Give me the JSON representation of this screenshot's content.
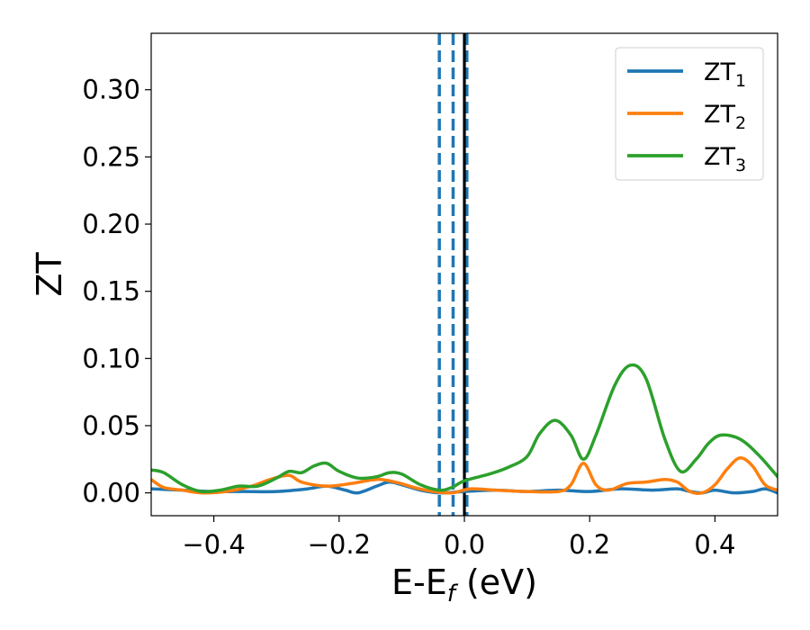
{
  "chart_data": {
    "type": "line",
    "xlabel": {
      "main": "E-E",
      "sub": "f",
      "suffix": " (eV)"
    },
    "ylabel": "ZT",
    "xlim": [
      -0.5,
      0.5
    ],
    "ylim": [
      -0.017,
      0.342
    ],
    "xticks": [
      {
        "value": -0.4,
        "label": "−0.4"
      },
      {
        "value": -0.2,
        "label": "−0.2"
      },
      {
        "value": 0.0,
        "label": "0.0"
      },
      {
        "value": 0.2,
        "label": "0.2"
      },
      {
        "value": 0.4,
        "label": "0.4"
      }
    ],
    "yticks": [
      {
        "value": 0.0,
        "label": "0.00"
      },
      {
        "value": 0.05,
        "label": "0.05"
      },
      {
        "value": 0.1,
        "label": "0.10"
      },
      {
        "value": 0.15,
        "label": "0.15"
      },
      {
        "value": 0.2,
        "label": "0.20"
      },
      {
        "value": 0.25,
        "label": "0.25"
      },
      {
        "value": 0.3,
        "label": "0.30"
      }
    ],
    "grid": false,
    "legend_position": "top-right",
    "series": [
      {
        "name": "ZT",
        "sub": "1",
        "color": "#1f77b4",
        "points": [
          [
            -0.5,
            0.003
          ],
          [
            -0.45,
            0.002
          ],
          [
            -0.4,
            0.001
          ],
          [
            -0.35,
            0.001
          ],
          [
            -0.3,
            0.001
          ],
          [
            -0.25,
            0.003
          ],
          [
            -0.22,
            0.005
          ],
          [
            -0.19,
            0.002
          ],
          [
            -0.17,
            0.0
          ],
          [
            -0.14,
            0.005
          ],
          [
            -0.12,
            0.008
          ],
          [
            -0.1,
            0.006
          ],
          [
            -0.07,
            0.002
          ],
          [
            -0.04,
            0.0
          ],
          [
            0.0,
            0.001
          ],
          [
            0.05,
            0.002
          ],
          [
            0.1,
            0.001
          ],
          [
            0.15,
            0.002
          ],
          [
            0.2,
            0.001
          ],
          [
            0.25,
            0.003
          ],
          [
            0.3,
            0.002
          ],
          [
            0.34,
            0.003
          ],
          [
            0.36,
            0.001
          ],
          [
            0.38,
            0.0
          ],
          [
            0.4,
            0.002
          ],
          [
            0.43,
            0.0
          ],
          [
            0.46,
            0.001
          ],
          [
            0.48,
            0.003
          ],
          [
            0.5,
            0.0
          ]
        ]
      },
      {
        "name": "ZT",
        "sub": "2",
        "color": "#ff7f0e",
        "points": [
          [
            -0.5,
            0.01
          ],
          [
            -0.48,
            0.004
          ],
          [
            -0.45,
            0.002
          ],
          [
            -0.42,
            0.0
          ],
          [
            -0.38,
            0.001
          ],
          [
            -0.34,
            0.005
          ],
          [
            -0.31,
            0.01
          ],
          [
            -0.28,
            0.013
          ],
          [
            -0.26,
            0.008
          ],
          [
            -0.22,
            0.005
          ],
          [
            -0.18,
            0.007
          ],
          [
            -0.14,
            0.01
          ],
          [
            -0.11,
            0.008
          ],
          [
            -0.08,
            0.004
          ],
          [
            -0.05,
            0.001
          ],
          [
            -0.02,
            0.0
          ],
          [
            0.01,
            0.003
          ],
          [
            0.05,
            0.002
          ],
          [
            0.1,
            0.001
          ],
          [
            0.15,
            0.001
          ],
          [
            0.17,
            0.006
          ],
          [
            0.19,
            0.022
          ],
          [
            0.21,
            0.006
          ],
          [
            0.23,
            0.002
          ],
          [
            0.26,
            0.007
          ],
          [
            0.29,
            0.008
          ],
          [
            0.32,
            0.01
          ],
          [
            0.34,
            0.008
          ],
          [
            0.36,
            0.001
          ],
          [
            0.38,
            0.0
          ],
          [
            0.4,
            0.006
          ],
          [
            0.42,
            0.018
          ],
          [
            0.44,
            0.026
          ],
          [
            0.46,
            0.02
          ],
          [
            0.48,
            0.006
          ],
          [
            0.5,
            0.002
          ]
        ]
      },
      {
        "name": "ZT",
        "sub": "3",
        "color": "#2ca02c",
        "points": [
          [
            -0.5,
            0.017
          ],
          [
            -0.48,
            0.015
          ],
          [
            -0.45,
            0.006
          ],
          [
            -0.42,
            0.001
          ],
          [
            -0.39,
            0.002
          ],
          [
            -0.36,
            0.005
          ],
          [
            -0.33,
            0.005
          ],
          [
            -0.3,
            0.011
          ],
          [
            -0.28,
            0.016
          ],
          [
            -0.26,
            0.015
          ],
          [
            -0.24,
            0.02
          ],
          [
            -0.22,
            0.022
          ],
          [
            -0.2,
            0.016
          ],
          [
            -0.17,
            0.011
          ],
          [
            -0.14,
            0.012
          ],
          [
            -0.12,
            0.015
          ],
          [
            -0.1,
            0.014
          ],
          [
            -0.07,
            0.006
          ],
          [
            -0.04,
            0.002
          ],
          [
            -0.02,
            0.004
          ],
          [
            0.0,
            0.009
          ],
          [
            0.04,
            0.014
          ],
          [
            0.07,
            0.019
          ],
          [
            0.1,
            0.027
          ],
          [
            0.12,
            0.044
          ],
          [
            0.145,
            0.054
          ],
          [
            0.17,
            0.043
          ],
          [
            0.19,
            0.025
          ],
          [
            0.21,
            0.043
          ],
          [
            0.24,
            0.08
          ],
          [
            0.265,
            0.095
          ],
          [
            0.29,
            0.085
          ],
          [
            0.32,
            0.04
          ],
          [
            0.345,
            0.016
          ],
          [
            0.37,
            0.025
          ],
          [
            0.39,
            0.037
          ],
          [
            0.41,
            0.043
          ],
          [
            0.44,
            0.04
          ],
          [
            0.47,
            0.028
          ],
          [
            0.5,
            0.012
          ]
        ]
      }
    ],
    "reference_lines": [
      {
        "x": -0.04,
        "color": "#1f77b4",
        "style": "dashed"
      },
      {
        "x": -0.018,
        "color": "#1f77b4",
        "style": "dashed"
      },
      {
        "x": 0.004,
        "color": "#1f77b4",
        "style": "dashed"
      },
      {
        "x": 0.0,
        "color": "#000000",
        "style": "solid"
      }
    ]
  }
}
